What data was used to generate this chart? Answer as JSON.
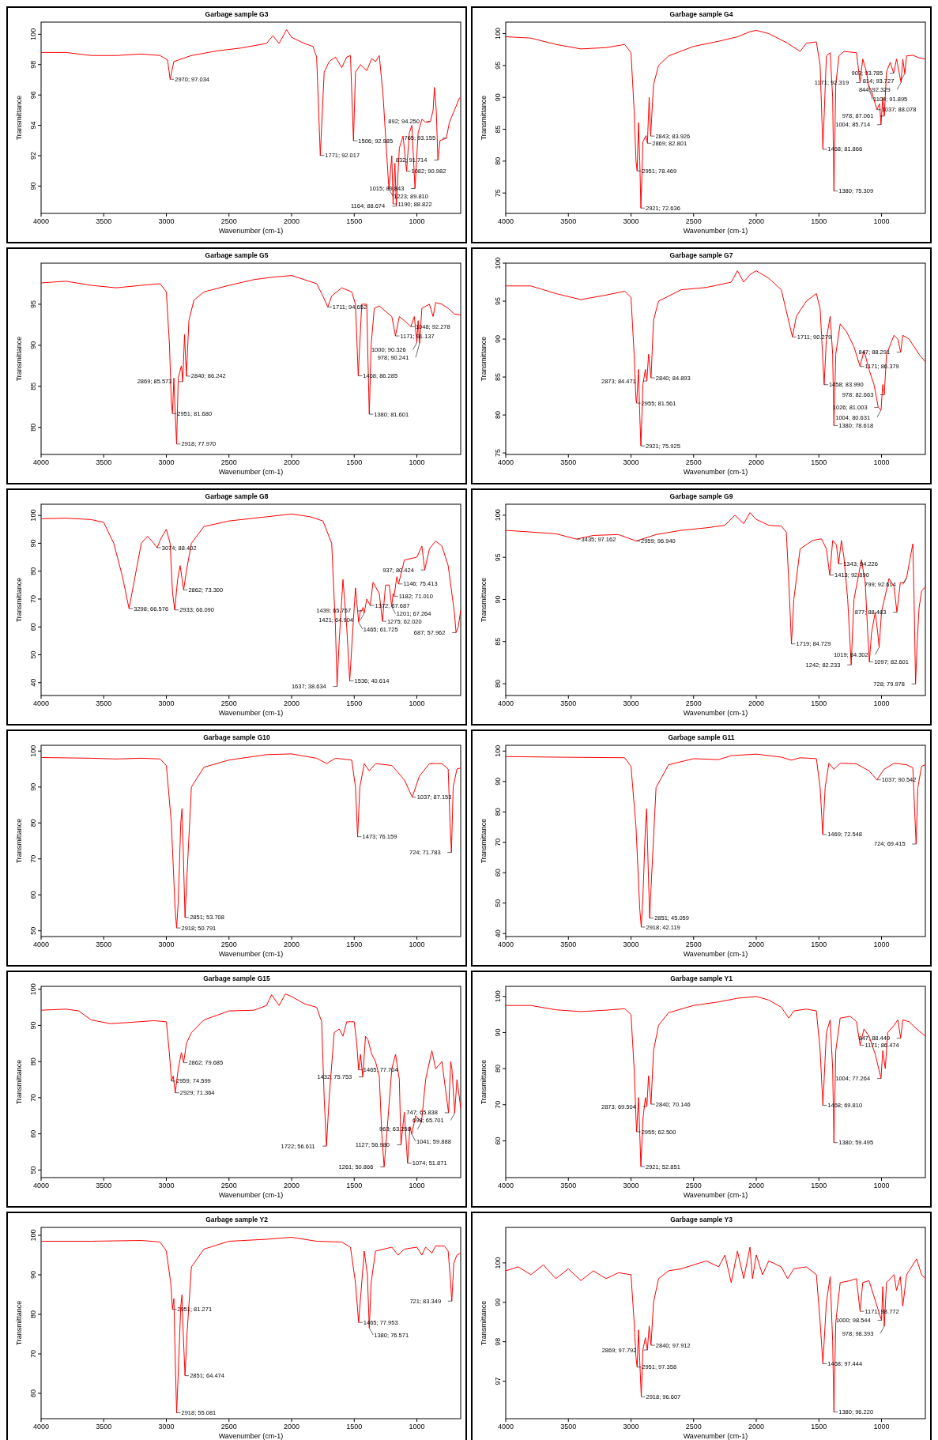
{
  "chart_data": [
    {
      "type": "line",
      "title": "Garbage sample G3",
      "xlabel": "Wavenumber (cm-1)",
      "ylabel": "Transmittance",
      "color": "#ff0000",
      "xlim": [
        4000,
        650
      ],
      "xticks": [
        4000,
        3500,
        3000,
        2500,
        2000,
        1500,
        1000
      ],
      "ylim": [
        88.2,
        100.8
      ],
      "yticks": [
        90,
        92,
        94,
        96,
        98,
        100
      ],
      "x": [
        4000,
        3800,
        3600,
        3400,
        3200,
        3050,
        2990,
        2970,
        2940,
        2800,
        2600,
        2400,
        2200,
        2150,
        2100,
        2040,
        2000,
        1900,
        1830,
        1800,
        1771,
        1740,
        1700,
        1650,
        1600,
        1560,
        1530,
        1506,
        1490,
        1450,
        1400,
        1360,
        1330,
        1300,
        1270,
        1240,
        1223,
        1200,
        1190,
        1175,
        1164,
        1140,
        1110,
        1082,
        1060,
        1040,
        1015,
        990,
        960,
        930,
        892,
        870,
        860,
        845,
        832,
        815,
        765,
        740,
        700,
        660,
        650
      ],
      "values": [
        98.8,
        98.8,
        98.6,
        98.6,
        98.7,
        98.6,
        98.3,
        97.034,
        98.2,
        98.6,
        98.9,
        99.1,
        99.4,
        99.9,
        99.4,
        100.3,
        99.8,
        99.4,
        99.2,
        98.5,
        92.017,
        97.5,
        98.2,
        98.5,
        97.8,
        98.5,
        98.6,
        92.985,
        97.5,
        98.0,
        97.6,
        98.4,
        98.2,
        98.6,
        96.0,
        92.0,
        89.81,
        92.0,
        88.822,
        91.5,
        88.674,
        92.5,
        93.3,
        90.982,
        93.5,
        94.0,
        89.843,
        93.5,
        94.4,
        94.2,
        94.25,
        95.0,
        96.5,
        95.0,
        91.714,
        93.0,
        93.155,
        94.2,
        95.0,
        95.8,
        95.8
      ],
      "annotations": [
        {
          "text": "2970; 97.034",
          "x": 2970,
          "y": 97.034
        },
        {
          "text": "1771; 92.017",
          "x": 1771,
          "y": 92.017
        },
        {
          "text": "1506; 92.985",
          "x": 1506,
          "y": 92.985
        },
        {
          "text": "892; 94.250",
          "x": 892,
          "y": 94.25
        },
        {
          "text": "765; 93.155",
          "x": 765,
          "y": 93.155
        },
        {
          "text": "832; 91.714",
          "x": 832,
          "y": 91.714
        },
        {
          "text": "1082; 90.982",
          "x": 1082,
          "y": 90.982
        },
        {
          "text": "1015; 89.843",
          "x": 1015,
          "y": 89.843
        },
        {
          "text": "1223; 89.810",
          "x": 1223,
          "y": 89.81
        },
        {
          "text": "1190; 88.822",
          "x": 1190,
          "y": 88.822
        },
        {
          "text": "1164; 88.674",
          "x": 1164,
          "y": 88.674
        }
      ]
    },
    {
      "type": "line",
      "title": "Garbage sample G4",
      "xlabel": "Wavenumber (cm-1)",
      "ylabel": "Transmittance",
      "color": "#ff0000",
      "xlim": [
        4000,
        650
      ],
      "xticks": [
        4000,
        3500,
        3000,
        2500,
        2000,
        1500,
        1000
      ],
      "ylim": [
        71.8,
        101.8
      ],
      "yticks": [
        75,
        80,
        85,
        90,
        95,
        100
      ],
      "x": [
        4000,
        3800,
        3600,
        3400,
        3200,
        3050,
        3000,
        2975,
        2960,
        2951,
        2940,
        2930,
        2921,
        2905,
        2880,
        2869,
        2855,
        2843,
        2820,
        2780,
        2700,
        2500,
        2300,
        2150,
        2050,
        2000,
        1900,
        1750,
        1650,
        1600,
        1520,
        1490,
        1468,
        1440,
        1410,
        1390,
        1380,
        1365,
        1340,
        1300,
        1200,
        1171,
        1150,
        1120,
        1104,
        1080,
        1037,
        1015,
        1004,
        990,
        978,
        960,
        930,
        903,
        880,
        844,
        830,
        814,
        800,
        750,
        700,
        650
      ],
      "values": [
        99.5,
        99.3,
        98.3,
        97.6,
        97.8,
        98.3,
        97.0,
        88.0,
        80.0,
        78.469,
        86.0,
        80.0,
        72.636,
        83.0,
        84.0,
        82.801,
        90.0,
        83.926,
        92.0,
        95.0,
        96.5,
        98.0,
        98.8,
        99.5,
        100.3,
        100.5,
        100.0,
        98.5,
        97.2,
        98.5,
        98.7,
        95.0,
        81.866,
        96.5,
        97.0,
        90.0,
        75.309,
        92.0,
        96.5,
        97.2,
        97.0,
        92.319,
        96.0,
        94.0,
        91.895,
        91.0,
        88.078,
        89.0,
        85.714,
        90.0,
        87.061,
        94.0,
        95.5,
        93.785,
        96.0,
        92.329,
        96.0,
        93.727,
        96.5,
        96.6,
        96.2,
        96.0
      ],
      "annotations": [
        {
          "text": "814; 93.727",
          "x": 814,
          "y": 93.727
        },
        {
          "text": "903; 93.785",
          "x": 903,
          "y": 93.785
        },
        {
          "text": "1171; 92.319",
          "x": 1171,
          "y": 92.319
        },
        {
          "text": "1104; 91.895",
          "x": 1104,
          "y": 91.895
        },
        {
          "text": "844; 92.329",
          "x": 844,
          "y": 92.329
        },
        {
          "text": "1037; 88.078",
          "x": 1037,
          "y": 88.078
        },
        {
          "text": "978; 87.061",
          "x": 978,
          "y": 87.061
        },
        {
          "text": "1004; 85.714",
          "x": 1004,
          "y": 85.714
        },
        {
          "text": "2843; 83.926",
          "x": 2843,
          "y": 83.926
        },
        {
          "text": "2869; 82.801",
          "x": 2869,
          "y": 82.801
        },
        {
          "text": "1468; 81.866",
          "x": 1468,
          "y": 81.866
        },
        {
          "text": "2951; 78.469",
          "x": 2951,
          "y": 78.469
        },
        {
          "text": "1380; 75.309",
          "x": 1380,
          "y": 75.309
        },
        {
          "text": "2921; 72.636",
          "x": 2921,
          "y": 72.636
        }
      ]
    },
    {
      "type": "line",
      "title": "Garbage sample G5",
      "xlabel": "Wavenumber (cm-1)",
      "ylabel": "Transmittance",
      "color": "#ff0000",
      "xlim": [
        4000,
        650
      ],
      "xticks": [
        4000,
        3500,
        3000,
        2500,
        2000,
        1500,
        1000
      ],
      "ylim": [
        76.7,
        100
      ],
      "yticks": [
        80,
        85,
        90,
        95
      ],
      "x": [
        4000,
        3800,
        3600,
        3400,
        3200,
        3050,
        3000,
        2975,
        2960,
        2951,
        2940,
        2930,
        2918,
        2905,
        2880,
        2869,
        2855,
        2840,
        2820,
        2780,
        2700,
        2500,
        2300,
        2150,
        2000,
        1900,
        1800,
        1750,
        1711,
        1680,
        1600,
        1520,
        1490,
        1468,
        1440,
        1400,
        1390,
        1380,
        1365,
        1340,
        1300,
        1240,
        1200,
        1171,
        1140,
        1100,
        1048,
        1020,
        1000,
        990,
        978,
        960,
        900,
        870,
        850,
        800,
        750,
        700,
        650
      ],
      "values": [
        97.6,
        97.8,
        97.3,
        97.0,
        97.3,
        97.5,
        96.5,
        90.0,
        83.0,
        81.68,
        86.0,
        82.0,
        77.97,
        86.0,
        87.5,
        85.573,
        91.3,
        86.242,
        93.0,
        95.5,
        96.5,
        97.3,
        98.0,
        98.3,
        98.5,
        98.0,
        97.5,
        96.0,
        94.652,
        96.0,
        97.0,
        96.5,
        95.0,
        86.285,
        95.0,
        95.0,
        88.0,
        81.601,
        90.0,
        94.5,
        94.8,
        94.0,
        93.5,
        91.137,
        93.5,
        93.0,
        92.278,
        93.5,
        90.326,
        93.0,
        90.241,
        94.5,
        95.0,
        93.5,
        95.2,
        95.0,
        94.5,
        93.8,
        93.7
      ],
      "annotations": [
        {
          "text": "1711; 94.652",
          "x": 1711,
          "y": 94.652
        },
        {
          "text": "1048; 92.278",
          "x": 1048,
          "y": 92.278
        },
        {
          "text": "1171; 91.137",
          "x": 1171,
          "y": 91.137
        },
        {
          "text": "978; 90.241",
          "x": 978,
          "y": 90.241
        },
        {
          "text": "1000; 90.326",
          "x": 1000,
          "y": 90.326
        },
        {
          "text": "2840; 86.242",
          "x": 2840,
          "y": 86.242
        },
        {
          "text": "1468; 86.285",
          "x": 1468,
          "y": 86.285
        },
        {
          "text": "2869; 85.573",
          "x": 2869,
          "y": 85.573
        },
        {
          "text": "2951; 81.680",
          "x": 2951,
          "y": 81.68
        },
        {
          "text": "1380; 81.601",
          "x": 1380,
          "y": 81.601
        },
        {
          "text": "2918; 77.970",
          "x": 2918,
          "y": 77.97
        }
      ]
    },
    {
      "type": "line",
      "title": "Garbage sample G7",
      "xlabel": "Wavenumber (cm-1)",
      "ylabel": "Transmittance",
      "color": "#ff0000",
      "xlim": [
        4000,
        650
      ],
      "xticks": [
        4000,
        3500,
        3000,
        2500,
        2000,
        1500,
        1000
      ],
      "ylim": [
        74.8,
        100
      ],
      "yticks": [
        75,
        80,
        85,
        90,
        95,
        100
      ],
      "x": [
        4000,
        3800,
        3600,
        3400,
        3200,
        3050,
        3000,
        2975,
        2960,
        2955,
        2940,
        2930,
        2921,
        2905,
        2885,
        2873,
        2860,
        2840,
        2820,
        2780,
        2600,
        2400,
        2200,
        2150,
        2100,
        2050,
        2000,
        1900,
        1800,
        1750,
        1711,
        1680,
        1600,
        1520,
        1490,
        1458,
        1440,
        1410,
        1390,
        1380,
        1365,
        1330,
        1280,
        1220,
        1171,
        1140,
        1100,
        1060,
        1026,
        1004,
        990,
        978,
        960,
        900,
        870,
        847,
        830,
        780,
        700,
        650
      ],
      "values": [
        97.0,
        97.0,
        96.0,
        95.2,
        95.8,
        96.3,
        95.5,
        88.0,
        82.0,
        81.561,
        86.0,
        80.0,
        75.925,
        84.0,
        86.0,
        84.471,
        88.0,
        84.893,
        92.5,
        95.0,
        96.5,
        96.8,
        97.5,
        99.0,
        97.5,
        98.5,
        99.0,
        98.0,
        96.5,
        93.0,
        90.279,
        93.0,
        95.0,
        96.0,
        94.0,
        83.99,
        90.0,
        93.0,
        88.0,
        78.618,
        88.0,
        92.0,
        91.0,
        89.0,
        86.379,
        88.5,
        86.0,
        84.0,
        81.003,
        80.631,
        84.0,
        82.663,
        88.0,
        90.5,
        90.0,
        88.291,
        90.5,
        90.0,
        88.0,
        87.0
      ],
      "annotations": [
        {
          "text": "1711; 90.279",
          "x": 1711,
          "y": 90.279
        },
        {
          "text": "847; 88.291",
          "x": 847,
          "y": 88.291
        },
        {
          "text": "1171; 86.379",
          "x": 1171,
          "y": 86.379
        },
        {
          "text": "2873; 84.471",
          "x": 2873,
          "y": 84.471
        },
        {
          "text": "2840; 84.893",
          "x": 2840,
          "y": 84.893
        },
        {
          "text": "1458; 83.990",
          "x": 1458,
          "y": 83.99
        },
        {
          "text": "978; 82.663",
          "x": 978,
          "y": 82.663
        },
        {
          "text": "2955; 81.561",
          "x": 2955,
          "y": 81.561
        },
        {
          "text": "1026; 81.003",
          "x": 1026,
          "y": 81.003
        },
        {
          "text": "1004; 80.631",
          "x": 1004,
          "y": 80.631
        },
        {
          "text": "1380; 78.618",
          "x": 1380,
          "y": 78.618
        },
        {
          "text": "2921; 75.925",
          "x": 2921,
          "y": 75.925
        }
      ]
    },
    {
      "type": "line",
      "title": "Garbage sample G8",
      "xlabel": "Wavenumber (cm-1)",
      "ylabel": "Transmittance",
      "color": "#ff0000",
      "xlim": [
        4000,
        650
      ],
      "xticks": [
        4000,
        3500,
        3000,
        2500,
        2000,
        1500,
        1000
      ],
      "ylim": [
        35.4,
        104
      ],
      "yticks": [
        40,
        50,
        60,
        70,
        80,
        90,
        100
      ],
      "x": [
        4000,
        3800,
        3600,
        3500,
        3420,
        3350,
        3298,
        3250,
        3200,
        3150,
        3100,
        3074,
        3040,
        3000,
        2970,
        2950,
        2933,
        2910,
        2890,
        2862,
        2840,
        2800,
        2700,
        2500,
        2200,
        2000,
        1850,
        1750,
        1680,
        1650,
        1637,
        1620,
        1590,
        1560,
        1536,
        1510,
        1490,
        1465,
        1450,
        1439,
        1430,
        1421,
        1400,
        1372,
        1350,
        1300,
        1275,
        1250,
        1220,
        1201,
        1190,
        1182,
        1160,
        1146,
        1100,
        1000,
        960,
        937,
        900,
        850,
        800,
        750,
        700,
        687,
        670,
        650
      ],
      "values": [
        98.8,
        99.0,
        98.5,
        97.5,
        90.0,
        78.0,
        66.576,
        78.0,
        90.0,
        92.5,
        90.0,
        88.402,
        92.0,
        95.0,
        90.0,
        72.0,
        66.09,
        77.0,
        82.0,
        73.3,
        80.0,
        90.0,
        96.0,
        98.0,
        99.5,
        100.5,
        99.5,
        98.0,
        90.0,
        60.0,
        38.634,
        55.0,
        77.0,
        60.0,
        40.614,
        60.0,
        74.0,
        61.725,
        66.0,
        65.757,
        67.0,
        64.904,
        70.0,
        67.687,
        76.0,
        72.0,
        62.02,
        75.0,
        75.0,
        67.264,
        72.0,
        71.01,
        78.0,
        75.413,
        84.0,
        85.0,
        89.0,
        80.424,
        88.0,
        90.8,
        89.0,
        82.0,
        65.0,
        57.962,
        60.0,
        66.0
      ],
      "annotations": [
        {
          "text": "3074; 88.402",
          "x": 3074,
          "y": 88.402
        },
        {
          "text": "937; 80.424",
          "x": 937,
          "y": 80.424
        },
        {
          "text": "1146; 75.413",
          "x": 1146,
          "y": 75.413
        },
        {
          "text": "2862; 73.300",
          "x": 2862,
          "y": 73.3
        },
        {
          "text": "1182; 71.010",
          "x": 1182,
          "y": 71.01
        },
        {
          "text": "1372; 67.687",
          "x": 1372,
          "y": 67.687
        },
        {
          "text": "1201; 67.264",
          "x": 1201,
          "y": 67.264
        },
        {
          "text": "3298; 66.576",
          "x": 3298,
          "y": 66.576
        },
        {
          "text": "2933; 66.090",
          "x": 2933,
          "y": 66.09
        },
        {
          "text": "1439; 65.757",
          "x": 1439,
          "y": 65.757
        },
        {
          "text": "1421; 64.904",
          "x": 1421,
          "y": 64.904
        },
        {
          "text": "1275; 62.020",
          "x": 1275,
          "y": 62.02
        },
        {
          "text": "1465; 61.725",
          "x": 1465,
          "y": 61.725
        },
        {
          "text": "687; 57.962",
          "x": 687,
          "y": 57.962
        },
        {
          "text": "1536; 40.614",
          "x": 1536,
          "y": 40.614
        },
        {
          "text": "1637; 38.634",
          "x": 1637,
          "y": 38.634
        }
      ]
    },
    {
      "type": "line",
      "title": "Garbage sample G9",
      "xlabel": "Wavenumber (cm-1)",
      "ylabel": "Transmittance",
      "color": "#ff0000",
      "xlim": [
        4000,
        650
      ],
      "xticks": [
        4000,
        3500,
        3000,
        2500,
        2000,
        1500,
        1000
      ],
      "ylim": [
        78.6,
        101.3
      ],
      "yticks": [
        80,
        85,
        90,
        95,
        100
      ],
      "x": [
        4000,
        3800,
        3600,
        3435,
        3300,
        3100,
        2959,
        2800,
        2600,
        2400,
        2250,
        2170,
        2100,
        2050,
        2000,
        1900,
        1800,
        1760,
        1740,
        1719,
        1700,
        1650,
        1550,
        1480,
        1440,
        1413,
        1390,
        1360,
        1343,
        1320,
        1300,
        1270,
        1242,
        1220,
        1160,
        1130,
        1110,
        1097,
        1080,
        1050,
        1030,
        1019,
        1000,
        940,
        900,
        877,
        850,
        820,
        799,
        770,
        750,
        740,
        728,
        715,
        700,
        680,
        650
      ],
      "values": [
        98.2,
        98.0,
        97.8,
        97.162,
        97.6,
        97.7,
        96.94,
        97.7,
        98.2,
        98.5,
        98.8,
        100.0,
        99.0,
        100.3,
        99.5,
        98.8,
        98.7,
        98.0,
        92.0,
        84.729,
        90.0,
        96.0,
        97.0,
        97.2,
        96.0,
        92.89,
        97.0,
        96.5,
        94.226,
        97.0,
        95.0,
        90.0,
        82.233,
        90.0,
        94.7,
        92.0,
        86.0,
        82.601,
        86.0,
        88.5,
        86.0,
        84.302,
        88.5,
        92.5,
        91.5,
        88.483,
        92.0,
        92.0,
        92.614,
        95.0,
        96.6,
        90.0,
        79.978,
        85.0,
        89.0,
        91.0,
        91.5
      ],
      "annotations": [
        {
          "text": "3435; 97.162",
          "x": 3435,
          "y": 97.162
        },
        {
          "text": "2959; 96.940",
          "x": 2959,
          "y": 96.94
        },
        {
          "text": "1343; 94.226",
          "x": 1343,
          "y": 94.226
        },
        {
          "text": "1413; 92.890",
          "x": 1413,
          "y": 92.89
        },
        {
          "text": "799; 92.614",
          "x": 799,
          "y": 92.614
        },
        {
          "text": "877; 88.483",
          "x": 877,
          "y": 88.483
        },
        {
          "text": "1719; 84.729",
          "x": 1719,
          "y": 84.729
        },
        {
          "text": "1019; 84.302",
          "x": 1019,
          "y": 84.302
        },
        {
          "text": "1242; 82.233",
          "x": 1242,
          "y": 82.233
        },
        {
          "text": "1097; 82.601",
          "x": 1097,
          "y": 82.601
        },
        {
          "text": "728; 79.978",
          "x": 728,
          "y": 79.978
        }
      ]
    },
    {
      "type": "line",
      "title": "Garbage sample G10",
      "xlabel": "Wavenumber (cm-1)",
      "ylabel": "Transmittance",
      "color": "#ff0000",
      "xlim": [
        4000,
        650
      ],
      "xticks": [
        4000,
        3500,
        3000,
        2500,
        2000,
        1500,
        1000
      ],
      "ylim": [
        48.4,
        101.6
      ],
      "yticks": [
        50,
        60,
        70,
        80,
        90,
        100
      ],
      "x": [
        4000,
        3600,
        3400,
        3200,
        3050,
        3000,
        2960,
        2930,
        2918,
        2905,
        2885,
        2875,
        2865,
        2851,
        2840,
        2800,
        2700,
        2500,
        2200,
        2000,
        1800,
        1720,
        1650,
        1520,
        1490,
        1473,
        1455,
        1420,
        1380,
        1330,
        1200,
        1100,
        1037,
        980,
        900,
        800,
        750,
        735,
        724,
        710,
        680,
        650
      ],
      "values": [
        98.2,
        98.0,
        97.8,
        98.0,
        97.8,
        96.0,
        80.0,
        56.0,
        50.791,
        58.0,
        80.0,
        84.0,
        72.0,
        53.708,
        62.0,
        90.0,
        95.5,
        97.5,
        99.0,
        99.2,
        98.0,
        96.5,
        98.0,
        97.5,
        90.0,
        76.159,
        90.0,
        96.5,
        94.5,
        96.5,
        96.0,
        92.0,
        87.153,
        93.0,
        96.5,
        96.5,
        95.0,
        80.0,
        71.783,
        90.0,
        95.0,
        95.3
      ],
      "annotations": [
        {
          "text": "1037; 87.153",
          "x": 1037,
          "y": 87.153
        },
        {
          "text": "1473; 76.159",
          "x": 1473,
          "y": 76.159
        },
        {
          "text": "724; 71.783",
          "x": 724,
          "y": 71.783
        },
        {
          "text": "2851; 53.708",
          "x": 2851,
          "y": 53.708
        },
        {
          "text": "2918; 50.791",
          "x": 2918,
          "y": 50.791
        }
      ]
    },
    {
      "type": "line",
      "title": "Garbage sample G11",
      "xlabel": "Wavenumber (cm-1)",
      "ylabel": "Transmittance",
      "color": "#ff0000",
      "xlim": [
        4000,
        650
      ],
      "xticks": [
        4000,
        3500,
        3000,
        2500,
        2000,
        1500,
        1000
      ],
      "ylim": [
        39,
        101.9
      ],
      "yticks": [
        40,
        50,
        60,
        70,
        80,
        90,
        100
      ],
      "x": [
        4000,
        3600,
        3050,
        3000,
        2960,
        2930,
        2918,
        2905,
        2885,
        2875,
        2865,
        2851,
        2840,
        2800,
        2700,
        2500,
        2300,
        2200,
        2000,
        1800,
        1720,
        1650,
        1520,
        1490,
        1469,
        1450,
        1420,
        1380,
        1330,
        1200,
        1100,
        1037,
        980,
        900,
        800,
        750,
        735,
        724,
        710,
        680,
        650
      ],
      "values": [
        98.2,
        98.0,
        97.8,
        95.0,
        75.0,
        48.0,
        42.119,
        52.0,
        75.0,
        81.0,
        65.0,
        45.059,
        55.0,
        88.0,
        95.5,
        97.5,
        97.2,
        98.5,
        99.0,
        98.0,
        97.0,
        97.8,
        97.5,
        88.0,
        72.548,
        88.0,
        96.0,
        94.0,
        96.0,
        95.8,
        93.5,
        90.542,
        94.0,
        96.0,
        95.5,
        94.5,
        80.0,
        69.415,
        88.0,
        95.0,
        95.5
      ],
      "annotations": [
        {
          "text": "1037; 90.542",
          "x": 1037,
          "y": 90.542
        },
        {
          "text": "1469; 72.548",
          "x": 1469,
          "y": 72.548
        },
        {
          "text": "724; 69.415",
          "x": 724,
          "y": 69.415
        },
        {
          "text": "2851; 45.059",
          "x": 2851,
          "y": 45.059
        },
        {
          "text": "2918; 42.119",
          "x": 2918,
          "y": 42.119
        }
      ]
    },
    {
      "type": "line",
      "title": "Garbage sample G15",
      "xlabel": "Wavenumber (cm-1)",
      "ylabel": "Transmittance",
      "color": "#ff0000",
      "xlim": [
        4000,
        650
      ],
      "xticks": [
        4000,
        3500,
        3000,
        2500,
        2000,
        1500,
        1000
      ],
      "ylim": [
        47.9,
        100.8
      ],
      "yticks": [
        50,
        60,
        70,
        80,
        90,
        100
      ],
      "x": [
        4000,
        3800,
        3700,
        3600,
        3450,
        3300,
        3100,
        3000,
        2975,
        2959,
        2945,
        2929,
        2905,
        2880,
        2862,
        2840,
        2800,
        2700,
        2500,
        2300,
        2200,
        2160,
        2100,
        2050,
        2000,
        1900,
        1800,
        1760,
        1740,
        1722,
        1700,
        1660,
        1620,
        1590,
        1560,
        1500,
        1480,
        1465,
        1450,
        1432,
        1410,
        1390,
        1360,
        1330,
        1300,
        1280,
        1261,
        1240,
        1200,
        1170,
        1140,
        1127,
        1100,
        1074,
        1055,
        1041,
        1010,
        963,
        930,
        880,
        850,
        800,
        770,
        747,
        730,
        720,
        698,
        680,
        660,
        650
      ],
      "values": [
        94.2,
        94.5,
        94.0,
        91.5,
        90.5,
        90.8,
        91.3,
        91.0,
        82.0,
        74.599,
        76.0,
        71.364,
        78.0,
        82.5,
        79.685,
        85.0,
        88.0,
        91.5,
        94.0,
        94.2,
        95.5,
        98.5,
        95.5,
        98.7,
        98.0,
        96.0,
        95.0,
        91.0,
        70.0,
        56.611,
        70.0,
        88.0,
        89.0,
        87.0,
        91.0,
        91.0,
        85.0,
        77.704,
        82.0,
        75.753,
        87.0,
        86.0,
        82.0,
        80.0,
        76.0,
        60.0,
        50.866,
        60.0,
        78.0,
        82.0,
        75.0,
        56.98,
        66.0,
        51.871,
        62.0,
        59.888,
        65.0,
        63.258,
        75.0,
        83.0,
        78.0,
        80.0,
        72.0,
        65.838,
        80.0,
        78.0,
        65.701,
        75.0,
        70.0,
        67.0
      ],
      "annotations": [
        {
          "text": "2862; 79.685",
          "x": 2862,
          "y": 79.685
        },
        {
          "text": "1465; 77.704",
          "x": 1465,
          "y": 77.704
        },
        {
          "text": "1432; 75.753",
          "x": 1432,
          "y": 75.753
        },
        {
          "text": "2959; 74.599",
          "x": 2959,
          "y": 74.599
        },
        {
          "text": "2929; 71.364",
          "x": 2929,
          "y": 71.364
        },
        {
          "text": "698; 65.701",
          "x": 698,
          "y": 65.701
        },
        {
          "text": "747; 65.838",
          "x": 747,
          "y": 65.838
        },
        {
          "text": "963; 63.258",
          "x": 963,
          "y": 63.258
        },
        {
          "text": "1041; 59.888",
          "x": 1041,
          "y": 59.888
        },
        {
          "text": "1722; 56.611",
          "x": 1722,
          "y": 56.611
        },
        {
          "text": "1127; 56.980",
          "x": 1127,
          "y": 56.98
        },
        {
          "text": "1261; 50.866",
          "x": 1261,
          "y": 50.866
        },
        {
          "text": "1074; 51.871",
          "x": 1074,
          "y": 51.871
        }
      ]
    },
    {
      "type": "line",
      "title": "Garbage sample Y1",
      "xlabel": "Wavenumber (cm-1)",
      "ylabel": "Transmittance",
      "color": "#ff0000",
      "xlim": [
        4000,
        650
      ],
      "xticks": [
        4000,
        3500,
        3000,
        2500,
        2000,
        1500,
        1000
      ],
      "ylim": [
        49.8,
        102.8
      ],
      "yticks": [
        60,
        70,
        80,
        90,
        100
      ],
      "x": [
        4000,
        3800,
        3600,
        3400,
        3200,
        3050,
        3000,
        2975,
        2960,
        2955,
        2940,
        2930,
        2921,
        2905,
        2885,
        2873,
        2860,
        2840,
        2820,
        2780,
        2700,
        2500,
        2300,
        2150,
        2000,
        1900,
        1800,
        1740,
        1700,
        1600,
        1520,
        1490,
        1468,
        1440,
        1410,
        1390,
        1380,
        1365,
        1330,
        1250,
        1200,
        1171,
        1140,
        1100,
        1050,
        1004,
        990,
        970,
        950,
        900,
        870,
        847,
        830,
        780,
        720,
        650
      ],
      "values": [
        97.5,
        97.5,
        96.3,
        95.8,
        96.2,
        96.6,
        95.0,
        80.0,
        66.0,
        62.5,
        72.0,
        62.0,
        52.851,
        66.0,
        72.0,
        69.504,
        78.0,
        70.146,
        85.0,
        92.0,
        95.5,
        97.5,
        98.5,
        99.5,
        100.0,
        99.0,
        97.0,
        94.0,
        96.0,
        96.5,
        96.0,
        85.0,
        69.81,
        90.0,
        93.5,
        80.0,
        59.495,
        85.0,
        94.0,
        94.5,
        93.0,
        86.474,
        91.0,
        89.0,
        84.0,
        77.264,
        85.0,
        80.0,
        90.0,
        92.0,
        93.5,
        88.449,
        93.5,
        93.0,
        91.0,
        89.0
      ],
      "annotations": [
        {
          "text": "847; 88.449",
          "x": 847,
          "y": 88.449
        },
        {
          "text": "1171; 86.474",
          "x": 1171,
          "y": 86.474
        },
        {
          "text": "1004; 77.264",
          "x": 1004,
          "y": 77.264
        },
        {
          "text": "2873; 69.504",
          "x": 2873,
          "y": 69.504
        },
        {
          "text": "1468; 69.810",
          "x": 1468,
          "y": 69.81
        },
        {
          "text": "2840; 70.146",
          "x": 2840,
          "y": 70.146
        },
        {
          "text": "2955; 62.500",
          "x": 2955,
          "y": 62.5
        },
        {
          "text": "1380; 59.495",
          "x": 1380,
          "y": 59.495
        },
        {
          "text": "2921; 52.851",
          "x": 2921,
          "y": 52.851
        }
      ]
    },
    {
      "type": "line",
      "title": "Garbage sample Y2",
      "xlabel": "Wavenumber (cm-1)",
      "ylabel": "Transmittance",
      "color": "#ff0000",
      "xlim": [
        4000,
        650
      ],
      "xticks": [
        4000,
        3500,
        3000,
        2500,
        2000,
        1500,
        1000
      ],
      "ylim": [
        53.6,
        102
      ],
      "yticks": [
        60,
        70,
        80,
        90,
        100
      ],
      "x": [
        4000,
        3600,
        3200,
        3050,
        3000,
        2965,
        2951,
        2940,
        2930,
        2918,
        2905,
        2885,
        2875,
        2865,
        2851,
        2835,
        2800,
        2700,
        2500,
        2200,
        2000,
        1800,
        1600,
        1530,
        1490,
        1465,
        1440,
        1420,
        1395,
        1380,
        1365,
        1330,
        1200,
        1150,
        1100,
        1000,
        960,
        930,
        880,
        850,
        780,
        750,
        735,
        721,
        705,
        680,
        650
      ],
      "values": [
        98.5,
        98.5,
        98.7,
        98.3,
        96.0,
        88.0,
        81.271,
        84.0,
        70.0,
        55.081,
        65.0,
        82.0,
        85.0,
        75.0,
        64.474,
        75.0,
        92.0,
        96.5,
        98.5,
        99.0,
        99.5,
        98.5,
        98.3,
        97.0,
        88.0,
        77.953,
        88.0,
        96.0,
        90.0,
        76.571,
        88.0,
        96.0,
        97.0,
        95.0,
        96.5,
        97.0,
        95.0,
        97.0,
        95.5,
        97.3,
        97.3,
        96.0,
        90.0,
        83.349,
        93.0,
        95.0,
        95.5
      ],
      "annotations": [
        {
          "text": "2951; 81.271",
          "x": 2951,
          "y": 81.271
        },
        {
          "text": "721; 83.349",
          "x": 721,
          "y": 83.349
        },
        {
          "text": "1465; 77.953",
          "x": 1465,
          "y": 77.953
        },
        {
          "text": "1380; 76.571",
          "x": 1380,
          "y": 76.571
        },
        {
          "text": "2851; 64.474",
          "x": 2851,
          "y": 64.474
        },
        {
          "text": "2918; 55.081",
          "x": 2918,
          "y": 55.081
        }
      ]
    },
    {
      "type": "line",
      "title": "Garbage sample Y3",
      "xlabel": "Wavenumber (cm-1)",
      "ylabel": "Transmittance",
      "color": "#ff0000",
      "xlim": [
        4000,
        650
      ],
      "xticks": [
        4000,
        3500,
        3000,
        2500,
        2000,
        1500,
        1000
      ],
      "ylim": [
        96.05,
        100.9
      ],
      "yticks": [
        97,
        98,
        99,
        100
      ],
      "x": [
        4000,
        3900,
        3800,
        3700,
        3600,
        3500,
        3400,
        3300,
        3200,
        3100,
        3000,
        2975,
        2960,
        2951,
        2940,
        2930,
        2918,
        2905,
        2885,
        2869,
        2855,
        2840,
        2820,
        2780,
        2700,
        2600,
        2500,
        2400,
        2300,
        2250,
        2200,
        2150,
        2100,
        2050,
        2030,
        2000,
        1950,
        1900,
        1800,
        1750,
        1700,
        1600,
        1520,
        1490,
        1468,
        1440,
        1410,
        1390,
        1380,
        1365,
        1330,
        1250,
        1200,
        1171,
        1150,
        1100,
        1000,
        990,
        978,
        960,
        900,
        880,
        850,
        830,
        800,
        720,
        680,
        650
      ],
      "values": [
        99.8,
        99.9,
        99.7,
        99.95,
        99.6,
        99.85,
        99.55,
        99.8,
        99.6,
        99.75,
        99.7,
        98.5,
        97.6,
        97.358,
        98.3,
        97.5,
        96.607,
        97.8,
        98.1,
        97.792,
        98.4,
        97.912,
        99.0,
        99.6,
        99.8,
        99.85,
        99.95,
        100.05,
        99.9,
        100.2,
        99.5,
        100.3,
        99.6,
        100.4,
        99.6,
        100.2,
        99.7,
        100.05,
        99.9,
        99.6,
        99.85,
        99.9,
        99.7,
        98.5,
        97.444,
        99.0,
        99.65,
        98.0,
        96.22,
        98.5,
        99.5,
        99.55,
        99.6,
        98.772,
        99.5,
        99.55,
        98.544,
        99.4,
        98.393,
        99.5,
        99.7,
        99.3,
        99.65,
        98.9,
        99.7,
        100.1,
        99.7,
        99.6
      ],
      "annotations": [
        {
          "text": "1171; 98.772",
          "x": 1171,
          "y": 98.772
        },
        {
          "text": "1000; 98.544",
          "x": 1000,
          "y": 98.544
        },
        {
          "text": "978; 98.393",
          "x": 978,
          "y": 98.393
        },
        {
          "text": "2840; 97.912",
          "x": 2840,
          "y": 97.912
        },
        {
          "text": "2869; 97.792",
          "x": 2869,
          "y": 97.792
        },
        {
          "text": "2951; 97.358",
          "x": 2951,
          "y": 97.358
        },
        {
          "text": "1468; 97.444",
          "x": 1468,
          "y": 97.444
        },
        {
          "text": "2918; 96.607",
          "x": 2918,
          "y": 96.607
        },
        {
          "text": "1380; 96.220",
          "x": 1380,
          "y": 96.22
        }
      ]
    }
  ]
}
